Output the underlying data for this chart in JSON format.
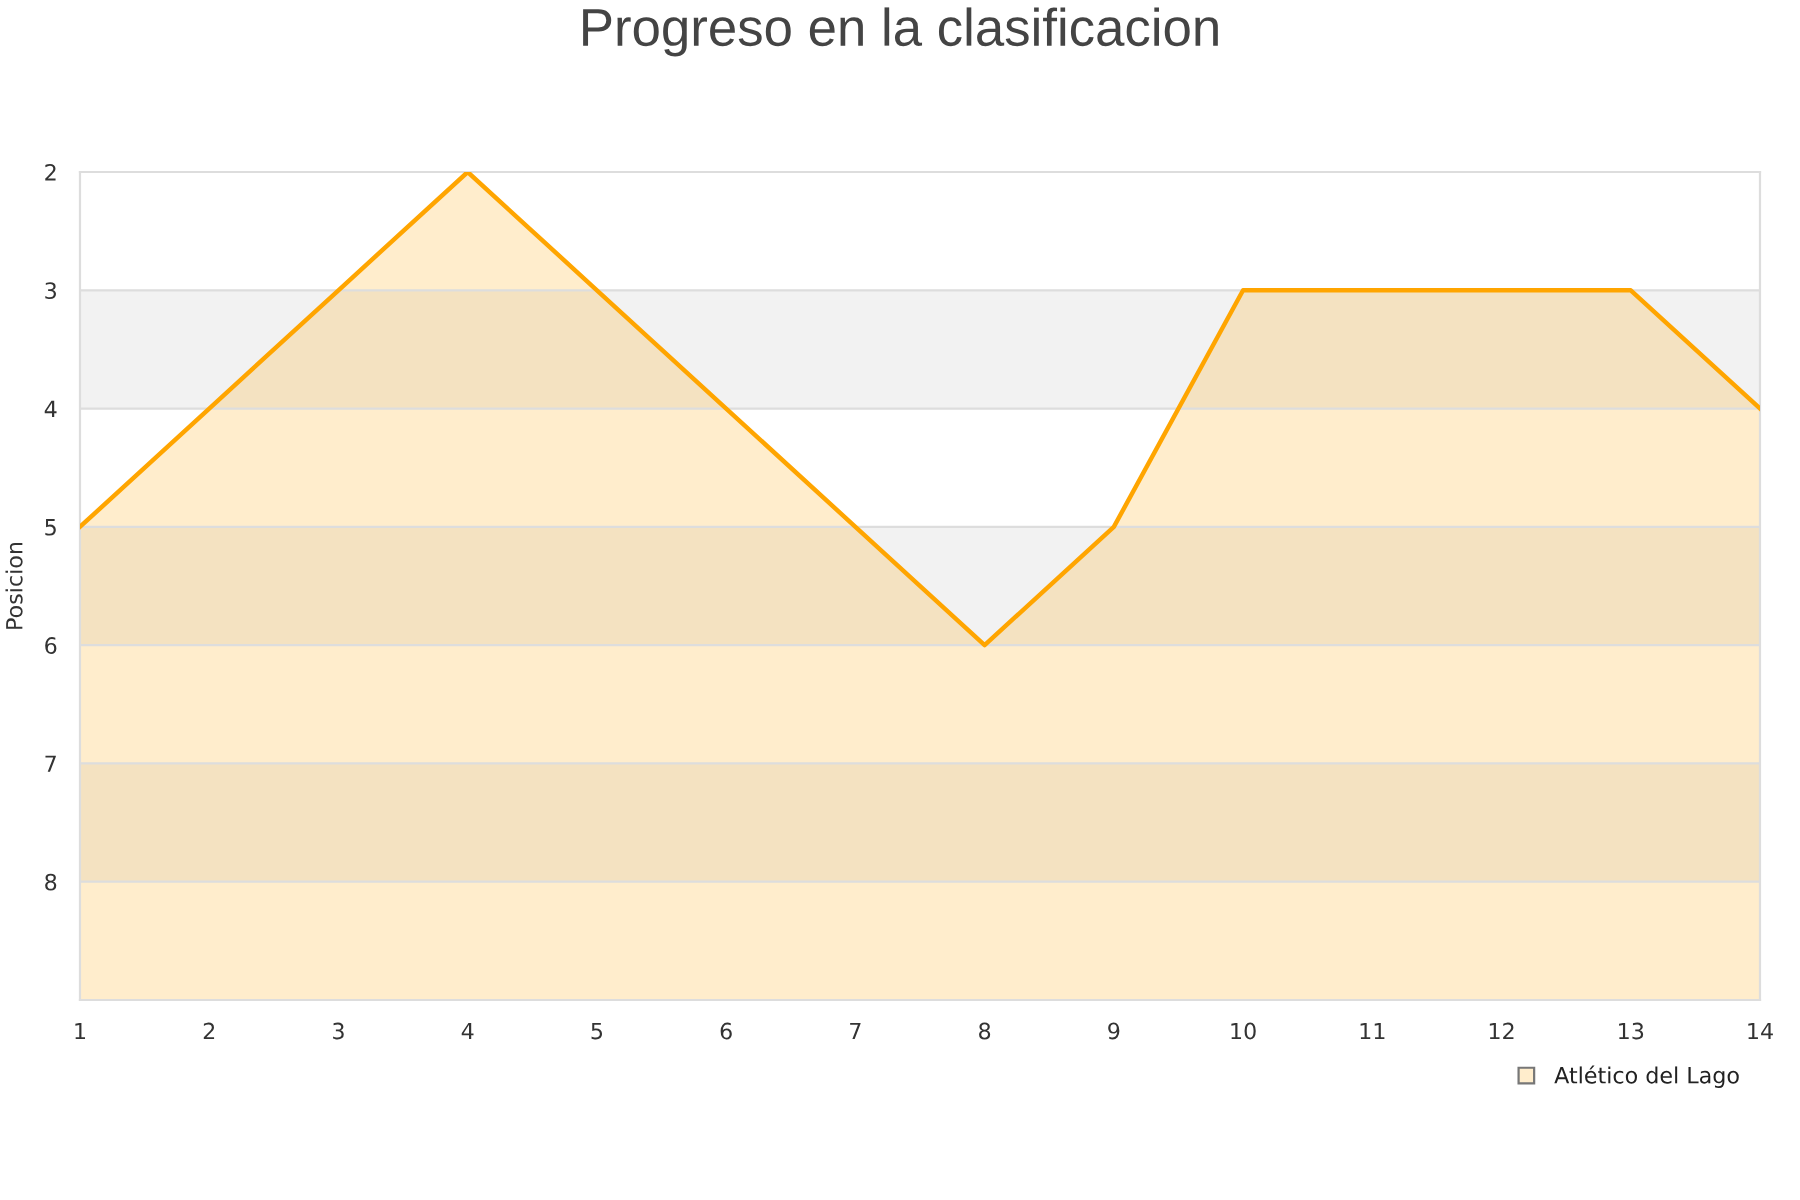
{
  "chart_data": {
    "type": "line",
    "title": "Progreso en la clasificacion",
    "ylabel": "Posicion",
    "x": [
      1,
      2,
      3,
      4,
      5,
      6,
      7,
      8,
      9,
      10,
      11,
      12,
      13,
      14
    ],
    "series": [
      {
        "name": "Atlético del Lago",
        "color": "#ffa500",
        "values": [
          5,
          4,
          3,
          2,
          3,
          4,
          5,
          6,
          5,
          3,
          3,
          3,
          3,
          4
        ],
        "lower": [
          5,
          4,
          3,
          2,
          3,
          4,
          5,
          6,
          5,
          3,
          3,
          3,
          3,
          4
        ],
        "upper": [
          9,
          9,
          9,
          9,
          9,
          9,
          9,
          9,
          9,
          9,
          9,
          9,
          9,
          9
        ]
      }
    ],
    "xlim": [
      1,
      14
    ],
    "xticks": [
      1,
      2,
      3,
      4,
      5,
      6,
      7,
      8,
      9,
      10,
      11,
      12,
      13,
      14
    ],
    "ylim": [
      9,
      2
    ],
    "yticks": [
      2,
      3,
      4,
      5,
      6,
      7,
      8
    ],
    "bands": [
      {
        "axis": "y",
        "from": 3,
        "to": 4,
        "color": "#f2f2f2"
      },
      {
        "axis": "y",
        "from": 5,
        "to": 6,
        "color": "#f2f2f2"
      },
      {
        "axis": "y",
        "from": 7,
        "to": 8,
        "color": "#f2f2f2"
      }
    ],
    "grid": "y",
    "legend": "bottom right"
  }
}
